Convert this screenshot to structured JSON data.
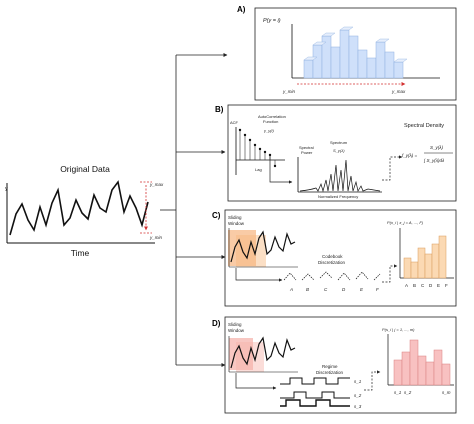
{
  "original": {
    "title": "Original Data",
    "y_axis": "y",
    "x_axis": "Time",
    "ymax": "y_max",
    "ymin": "y_min"
  },
  "panel_a": {
    "letter": "A)",
    "prob": "P(y = i)",
    "ymin": "y_min",
    "ymax": "y_max"
  },
  "panel_b": {
    "letter": "B)",
    "acf_axis": "ACF",
    "acf_title_1": "AutoCorrelation",
    "acf_title_2": "Function",
    "gamma": "γ_y(l)",
    "lag": "Lag",
    "spectrum": "Spectrum",
    "spectrum_fn": "S_y(λ)",
    "spectral_power_1": "Spectral",
    "spectral_power_2": "Power",
    "normalized_freq": "Normalized Frequency",
    "spectral_density": "Spectral Density",
    "fy": "f_y(λ) =",
    "fy_num": "S_y(λ)",
    "fy_den": "∫ S_y(λ)dλ"
  },
  "panel_c": {
    "letter": "C)",
    "sliding_1": "Sliding",
    "sliding_2": "Window",
    "codebook_1": "Codebook",
    "codebook_2": "Discretization",
    "seq_letters": [
      "A",
      "B",
      "C",
      "D",
      "E",
      "F"
    ],
    "prob": "P(x_i | x_j = A, ..., F)",
    "hist_letters": [
      "A",
      "B",
      "C",
      "D",
      "E",
      "F"
    ]
  },
  "panel_d": {
    "letter": "D)",
    "sliding_1": "Sliding",
    "sliding_2": "Window",
    "regime_1": "Regime",
    "regime_2": "Discretization",
    "states": [
      "s_1",
      "s_2",
      "s_3"
    ],
    "prob": "P(s_i | j = 1, ..., m)",
    "hist_s1": "s_1",
    "hist_s2": "s_2",
    "hist_sm": "s_m"
  }
}
